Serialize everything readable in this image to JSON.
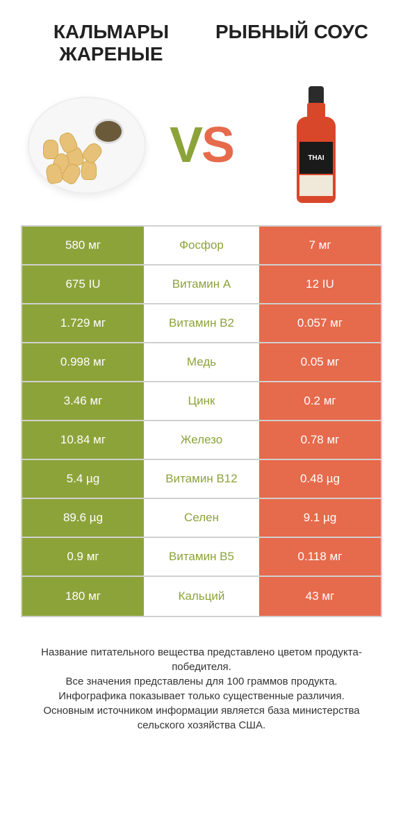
{
  "product_left": {
    "title": "КАЛЬМАРЫ ЖАРЕНЫЕ"
  },
  "product_right": {
    "title": "РЫБНЫЙ СОУС"
  },
  "vs": {
    "v": "V",
    "s": "S"
  },
  "colors": {
    "left_win": "#8ca33a",
    "right_win": "#e66a4c",
    "border": "#d0d0d0",
    "bg": "#ffffff",
    "text": "#222222"
  },
  "table": {
    "rows": [
      {
        "left": "580 мг",
        "nutrient": "Фосфор",
        "right": "7 мг",
        "winner": "left"
      },
      {
        "left": "675 IU",
        "nutrient": "Витамин A",
        "right": "12 IU",
        "winner": "left"
      },
      {
        "left": "1.729 мг",
        "nutrient": "Витамин B2",
        "right": "0.057 мг",
        "winner": "left"
      },
      {
        "left": "0.998 мг",
        "nutrient": "Медь",
        "right": "0.05 мг",
        "winner": "left"
      },
      {
        "left": "3.46 мг",
        "nutrient": "Цинк",
        "right": "0.2 мг",
        "winner": "left"
      },
      {
        "left": "10.84 мг",
        "nutrient": "Железо",
        "right": "0.78 мг",
        "winner": "left"
      },
      {
        "left": "5.4 µg",
        "nutrient": "Витамин B12",
        "right": "0.48 µg",
        "winner": "left"
      },
      {
        "left": "89.6 µg",
        "nutrient": "Селен",
        "right": "9.1 µg",
        "winner": "left"
      },
      {
        "left": "0.9 мг",
        "nutrient": "Витамин B5",
        "right": "0.118 мг",
        "winner": "left"
      },
      {
        "left": "180 мг",
        "nutrient": "Кальций",
        "right": "43 мг",
        "winner": "left"
      }
    ]
  },
  "footer": {
    "line1": "Название питательного вещества представлено цветом продукта-победителя.",
    "line2": "Все значения представлены для 100 граммов продукта.",
    "line3": "Инфографика показывает только существенные различия.",
    "line4": "Основным источником информации является база министерства сельского хозяйства США."
  },
  "bottle_label": "THAI"
}
